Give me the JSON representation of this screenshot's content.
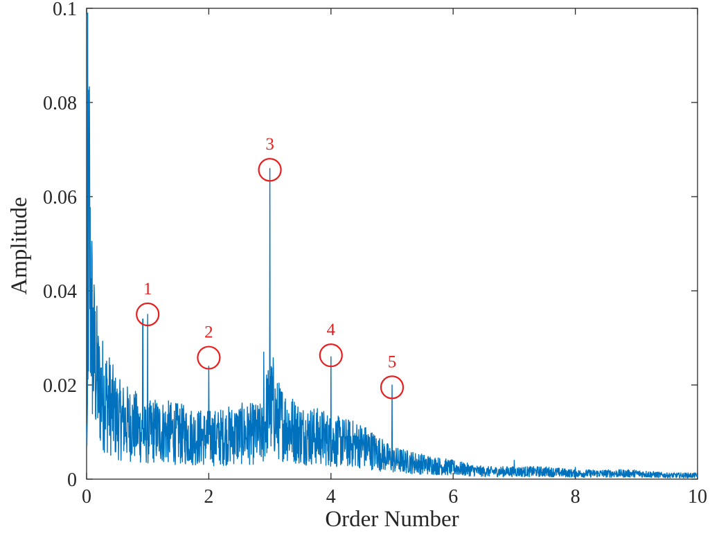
{
  "chart_data": {
    "type": "line",
    "title": "",
    "xlabel": "Order Number",
    "ylabel": "Amplitude",
    "xlim": [
      0,
      10
    ],
    "ylim": [
      0,
      0.1
    ],
    "grid": false,
    "x_ticks": [
      0,
      2,
      4,
      6,
      8,
      10
    ],
    "x_tick_labels": [
      "0",
      "2",
      "4",
      "6",
      "8",
      "10"
    ],
    "y_ticks": [
      0,
      0.02,
      0.04,
      0.06,
      0.08,
      0.1
    ],
    "y_tick_labels": [
      "0",
      "0.02",
      "0.04",
      "0.06",
      "0.08",
      "0.1"
    ],
    "series": [
      {
        "color": "#0072bd",
        "x": [
          0,
          0.02,
          0.04,
          0.06,
          0.08,
          0.1,
          0.15,
          0.2,
          0.3,
          0.5,
          0.8,
          0.92,
          0.95,
          1.0,
          1.1,
          1.5,
          1.9,
          2.0,
          2.1,
          2.5,
          2.9,
          2.95,
          3.0,
          3.05,
          3.1,
          3.5,
          3.9,
          4.0,
          4.1,
          4.5,
          4.9,
          5.0,
          5.1,
          5.5,
          6.0,
          6.5,
          7.0,
          7.5,
          8.0,
          8.5,
          9.0,
          9.5,
          10.0
        ],
        "y": [
          0.012,
          0.099,
          0.08,
          0.05,
          0.045,
          0.035,
          0.03,
          0.024,
          0.022,
          0.016,
          0.014,
          0.034,
          0.012,
          0.035,
          0.013,
          0.012,
          0.011,
          0.024,
          0.011,
          0.012,
          0.027,
          0.018,
          0.066,
          0.02,
          0.016,
          0.012,
          0.011,
          0.026,
          0.01,
          0.009,
          0.006,
          0.02,
          0.005,
          0.004,
          0.003,
          0.002,
          0.004,
          0.002,
          0.0025,
          0.0015,
          0.0015,
          0.001,
          0.001
        ]
      }
    ],
    "annotations": [
      {
        "label": "1",
        "x": 1.0,
        "y": 0.035,
        "color": "#e81e1e"
      },
      {
        "label": "2",
        "x": 2.0,
        "y": 0.0258,
        "color": "#e81e1e"
      },
      {
        "label": "3",
        "x": 3.0,
        "y": 0.0657,
        "color": "#e81e1e"
      },
      {
        "label": "4",
        "x": 4.0,
        "y": 0.0263,
        "color": "#e81e1e"
      },
      {
        "label": "5",
        "x": 5.0,
        "y": 0.0195,
        "color": "#e81e1e"
      }
    ]
  }
}
